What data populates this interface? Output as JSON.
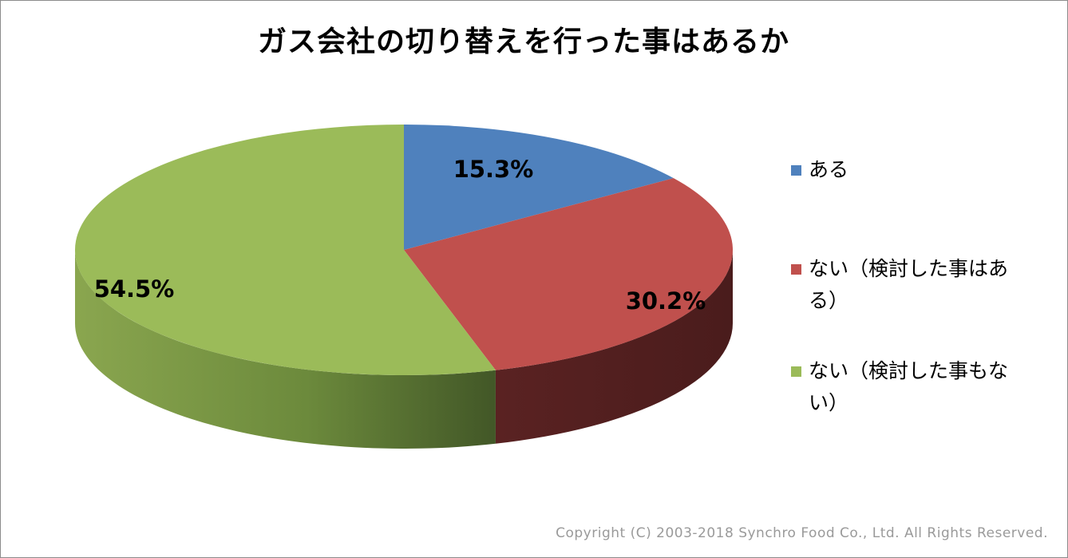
{
  "chart_data": {
    "type": "pie",
    "title": "ガス会社の切り替えを行った事はあるか",
    "three_d": true,
    "legend_placement": "right",
    "series": [
      {
        "slices": [
          {
            "label": "ある",
            "value": 15.3,
            "display": "15.3%",
            "color": "#4f81bd",
            "side_color": "#2e4d73"
          },
          {
            "label": "ない（検討した事はある）",
            "value": 30.2,
            "display": "30.2%",
            "color": "#c0504d",
            "side_color": "#4f1e1e"
          },
          {
            "label": "ない（検討した事もない）",
            "value": 54.5,
            "display": "54.5%",
            "color": "#9bbb59",
            "side_color": "#5c7432"
          }
        ]
      }
    ]
  },
  "footer": {
    "copyright": "Copyright (C) 2003-2018  Synchro Food Co., Ltd. All Rights Reserved."
  }
}
